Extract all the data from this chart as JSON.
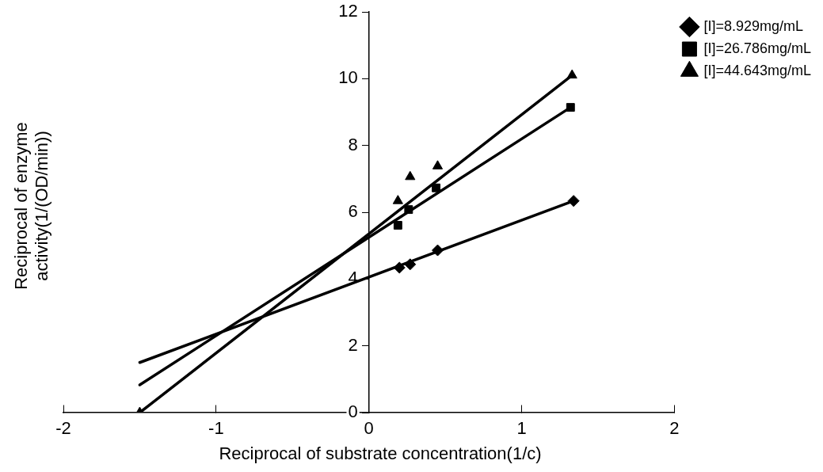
{
  "chart_data": {
    "type": "scatter",
    "xlabel": "Reciprocal of substrate concentration(1/c)",
    "ylabel": "Reciprocal of enzyme\nactivity(1/(OD/min))",
    "xlim": [
      -2,
      2
    ],
    "ylim": [
      0,
      12
    ],
    "xticks": [
      -2,
      -1,
      0,
      1,
      2
    ],
    "yticks": [
      0,
      2,
      4,
      6,
      8,
      10,
      12
    ],
    "legend": "top right",
    "series": [
      {
        "name": "[I]=8.929mg/mL",
        "color": "#000000",
        "marker": "diamond",
        "x": [
          0.2,
          0.27,
          0.45,
          1.34
        ],
        "values": [
          4.34,
          4.44,
          4.86,
          6.34
        ]
      },
      {
        "name": "[I]=26.786mg/mL",
        "color": "#000000",
        "marker": "square",
        "x": [
          0.19,
          0.26,
          0.44,
          1.32
        ],
        "values": [
          5.61,
          6.08,
          6.73,
          9.14
        ]
      },
      {
        "name": "[I]=44.643mg/mL",
        "color": "#000000",
        "marker": "triangle",
        "x": [
          -1.5,
          0.19,
          0.27,
          0.45,
          1.33
        ],
        "values": [
          0,
          6.34,
          7.06,
          7.38,
          10.1
        ]
      },
      {
        "type": "line",
        "color": "#000000",
        "marker": "none",
        "line_style": "solid",
        "x": [
          -1.5,
          1.34
        ],
        "values": [
          1.5,
          6.34
        ]
      },
      {
        "type": "line",
        "color": "#000000",
        "marker": "none",
        "line_style": "solid",
        "x": [
          -1.5,
          1.32
        ],
        "values": [
          0.83,
          9.14
        ]
      },
      {
        "type": "line",
        "color": "#000000",
        "marker": "none",
        "line_style": "solid",
        "x": [
          -1.5,
          1.33
        ],
        "values": [
          0,
          10.1
        ]
      }
    ]
  }
}
